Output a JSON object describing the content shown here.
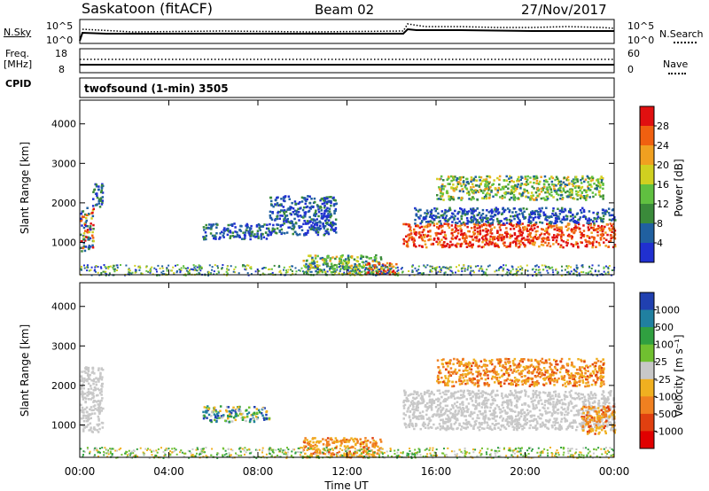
{
  "header": {
    "station": "Saskatoon (fitACF)",
    "beam": "Beam 02",
    "date": "27/Nov/2017"
  },
  "top_panel": {
    "left_label": "N.Sky",
    "right_label": "N.Search",
    "left_ticks": [
      "10^5",
      "10^0"
    ],
    "right_ticks": [
      "10^5",
      "10^0"
    ]
  },
  "freq_panel": {
    "left_label_1": "Freq.",
    "left_label_2": "[MHz]",
    "left_ticks": [
      "18",
      "8"
    ],
    "right_ticks": [
      "60",
      "0"
    ],
    "right_label": "Nave"
  },
  "cpid": {
    "label": "CPID",
    "value": "twofsound (1-min) 3505"
  },
  "colors": {
    "power_scale": [
      "#2030d0",
      "#2060a0",
      "#3a8a3a",
      "#60c040",
      "#d0d020",
      "#f0a020",
      "#f06010",
      "#e01010"
    ],
    "velocity_scale": [
      "#2040b0",
      "#2080a0",
      "#30a040",
      "#70c030",
      "#c8c8c8",
      "#f0b020",
      "#f08020",
      "#e04010",
      "#e00000"
    ],
    "ground_scatter": "#c8c8c8"
  },
  "chart_data": [
    {
      "type": "heatmap",
      "title": "Power",
      "ylabel": "Slant Range [km]",
      "xlabel": "Time UT",
      "x_tick_labels": [
        "00:00",
        "04:00",
        "08:00",
        "12:00",
        "16:00",
        "20:00",
        "00:00"
      ],
      "y_tick_labels": [
        "1000",
        "2000",
        "3000",
        "4000"
      ],
      "ylim": [
        180,
        4600
      ],
      "colorbar_label": "Power [dB]",
      "colorbar_ticks": [
        "4",
        "8",
        "12",
        "16",
        "20",
        "24",
        "28"
      ],
      "features": [
        {
          "t": [
            0.0,
            0.6
          ],
          "range": [
            800,
            1900
          ],
          "level": "mixed"
        },
        {
          "t": [
            0.5,
            1.0
          ],
          "range": [
            1900,
            2500
          ],
          "level": "low"
        },
        {
          "t": [
            5.5,
            8.5
          ],
          "range": [
            1100,
            1500
          ],
          "level": "low"
        },
        {
          "t": [
            8.5,
            11.5
          ],
          "range": [
            1200,
            2200
          ],
          "level": "low"
        },
        {
          "t": [
            10.0,
            13.5
          ],
          "range": [
            200,
            700
          ],
          "level": "mid"
        },
        {
          "t": [
            12.8,
            14.2
          ],
          "range": [
            200,
            500
          ],
          "level": "high"
        },
        {
          "t": [
            14.5,
            24.0
          ],
          "range": [
            900,
            1500
          ],
          "level": "high"
        },
        {
          "t": [
            15.0,
            24.0
          ],
          "range": [
            1500,
            1900
          ],
          "level": "low"
        },
        {
          "t": [
            16.0,
            23.5
          ],
          "range": [
            2100,
            2700
          ],
          "level": "mid"
        }
      ]
    },
    {
      "type": "heatmap",
      "title": "Velocity",
      "ylabel": "Slant Range [km]",
      "xlabel": "Time UT",
      "x_tick_labels": [
        "00:00",
        "04:00",
        "08:00",
        "12:00",
        "16:00",
        "20:00",
        "00:00"
      ],
      "y_tick_labels": [
        "1000",
        "2000",
        "3000",
        "4000"
      ],
      "ylim": [
        180,
        4600
      ],
      "colorbar_label": "Velocity [m s⁻¹]",
      "colorbar_ticks": [
        "1000",
        "500",
        "100",
        "25",
        "-25",
        "-100",
        "-500",
        "-1000"
      ],
      "features": [
        {
          "t": [
            0.0,
            1.0
          ],
          "range": [
            800,
            2500
          ],
          "kind": "ground"
        },
        {
          "t": [
            5.5,
            8.5
          ],
          "range": [
            1100,
            1500
          ],
          "kind": "mixed"
        },
        {
          "t": [
            10.0,
            13.5
          ],
          "range": [
            200,
            700
          ],
          "kind": "negative"
        },
        {
          "t": [
            14.5,
            24.0
          ],
          "range": [
            900,
            1900
          ],
          "kind": "ground"
        },
        {
          "t": [
            16.0,
            23.5
          ],
          "range": [
            2000,
            2700
          ],
          "kind": "negative"
        },
        {
          "t": [
            22.5,
            24.0
          ],
          "range": [
            800,
            1500
          ],
          "kind": "negative"
        }
      ]
    }
  ]
}
